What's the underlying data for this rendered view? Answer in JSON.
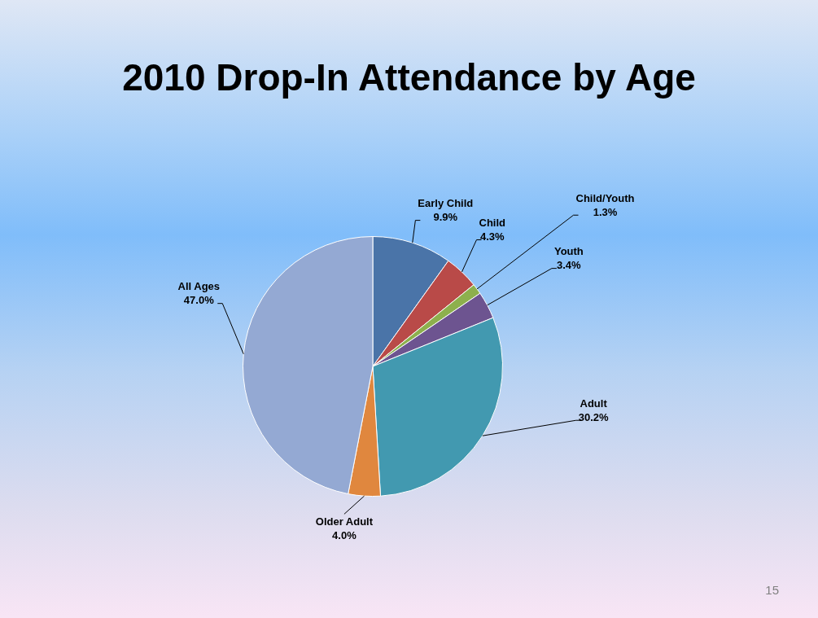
{
  "chart_data": {
    "type": "pie",
    "title": "2010 Drop-In Attendance by Age",
    "categories": [
      "Early Child",
      "Child",
      "Child/Youth",
      "Youth",
      "Adult",
      "Older Adult",
      "All Ages"
    ],
    "values": [
      9.9,
      4.3,
      1.3,
      3.4,
      30.2,
      4.0,
      47.0
    ],
    "value_labels": [
      "9.9%",
      "4.3%",
      "1.3%",
      "3.4%",
      "30.2%",
      "4.0%",
      "47.0%"
    ],
    "colors": [
      "#4a74a8",
      "#b94a48",
      "#8db04d",
      "#6d5490",
      "#4299b0",
      "#e0873e",
      "#94a9d3"
    ],
    "legend": false,
    "annotations": [
      "15"
    ]
  }
}
